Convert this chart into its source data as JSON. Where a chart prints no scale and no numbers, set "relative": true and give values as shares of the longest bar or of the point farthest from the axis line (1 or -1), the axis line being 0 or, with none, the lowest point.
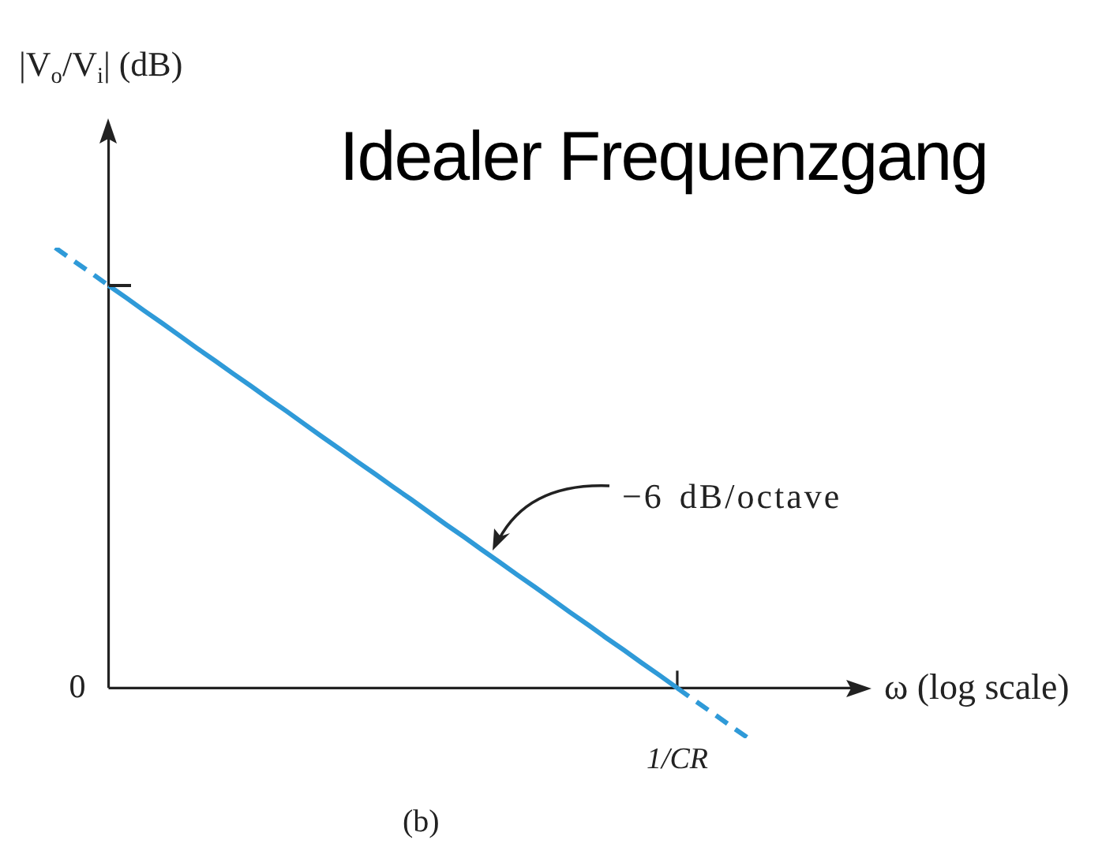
{
  "chart_data": {
    "type": "line",
    "relative": true,
    "title": "Idealer Frequenzgang",
    "xlabel": "ω (log scale)",
    "ylabel": "|V$_{o}$/V$_{i}$| (dB)",
    "categories": [
      null,
      null,
      null,
      null,
      null,
      null,
      null,
      null,
      null,
      null,
      null,
      null,
      null,
      null,
      null,
      null,
      null,
      null,
      null,
      null,
      null,
      null,
      null,
      null,
      null,
      null,
      null,
      null,
      null,
      null,
      null,
      null,
      null,
      null,
      null,
      null,
      null,
      null,
      null,
      null
    ],
    "series": [
      {
        "color": "#2f9ad8",
        "line_style": "dashed",
        "values": [
          1,
          0.971,
          0.943,
          0.914,
          null,
          null,
          null,
          null,
          null,
          null,
          null,
          null,
          null,
          null,
          null,
          null,
          null,
          null,
          null,
          null,
          null,
          null,
          null,
          null,
          null,
          null,
          null,
          null,
          null,
          null,
          null,
          null,
          null,
          null,
          null,
          null,
          null,
          null,
          null,
          null
        ]
      },
      {
        "color": "#2f9ad8",
        "line_style": "solid",
        "values": [
          null,
          null,
          null,
          0.914,
          0.886,
          0.857,
          0.829,
          0.8,
          0.771,
          0.743,
          0.714,
          0.686,
          0.657,
          0.629,
          0.6,
          0.571,
          0.543,
          0.514,
          0.486,
          0.457,
          0.429,
          0.4,
          0.371,
          0.343,
          0.314,
          0.286,
          0.257,
          0.229,
          0.2,
          0.171,
          0.143,
          0.114,
          0.086,
          0.057,
          0.029,
          0,
          null,
          null,
          null,
          null
        ]
      },
      {
        "color": "#2f9ad8",
        "line_style": "dashed",
        "values": [
          null,
          null,
          null,
          null,
          null,
          null,
          null,
          null,
          null,
          null,
          null,
          null,
          null,
          null,
          null,
          null,
          null,
          null,
          null,
          null,
          null,
          null,
          null,
          null,
          null,
          null,
          null,
          null,
          null,
          null,
          null,
          null,
          null,
          null,
          null,
          0,
          -0.029,
          -0.057,
          -0.086,
          -0.114
        ]
      }
    ],
    "annotations": [
      "0",
      {
        "text": "1/CR",
        "y": 0
      },
      "−6 dB/octave",
      "(b)"
    ]
  }
}
